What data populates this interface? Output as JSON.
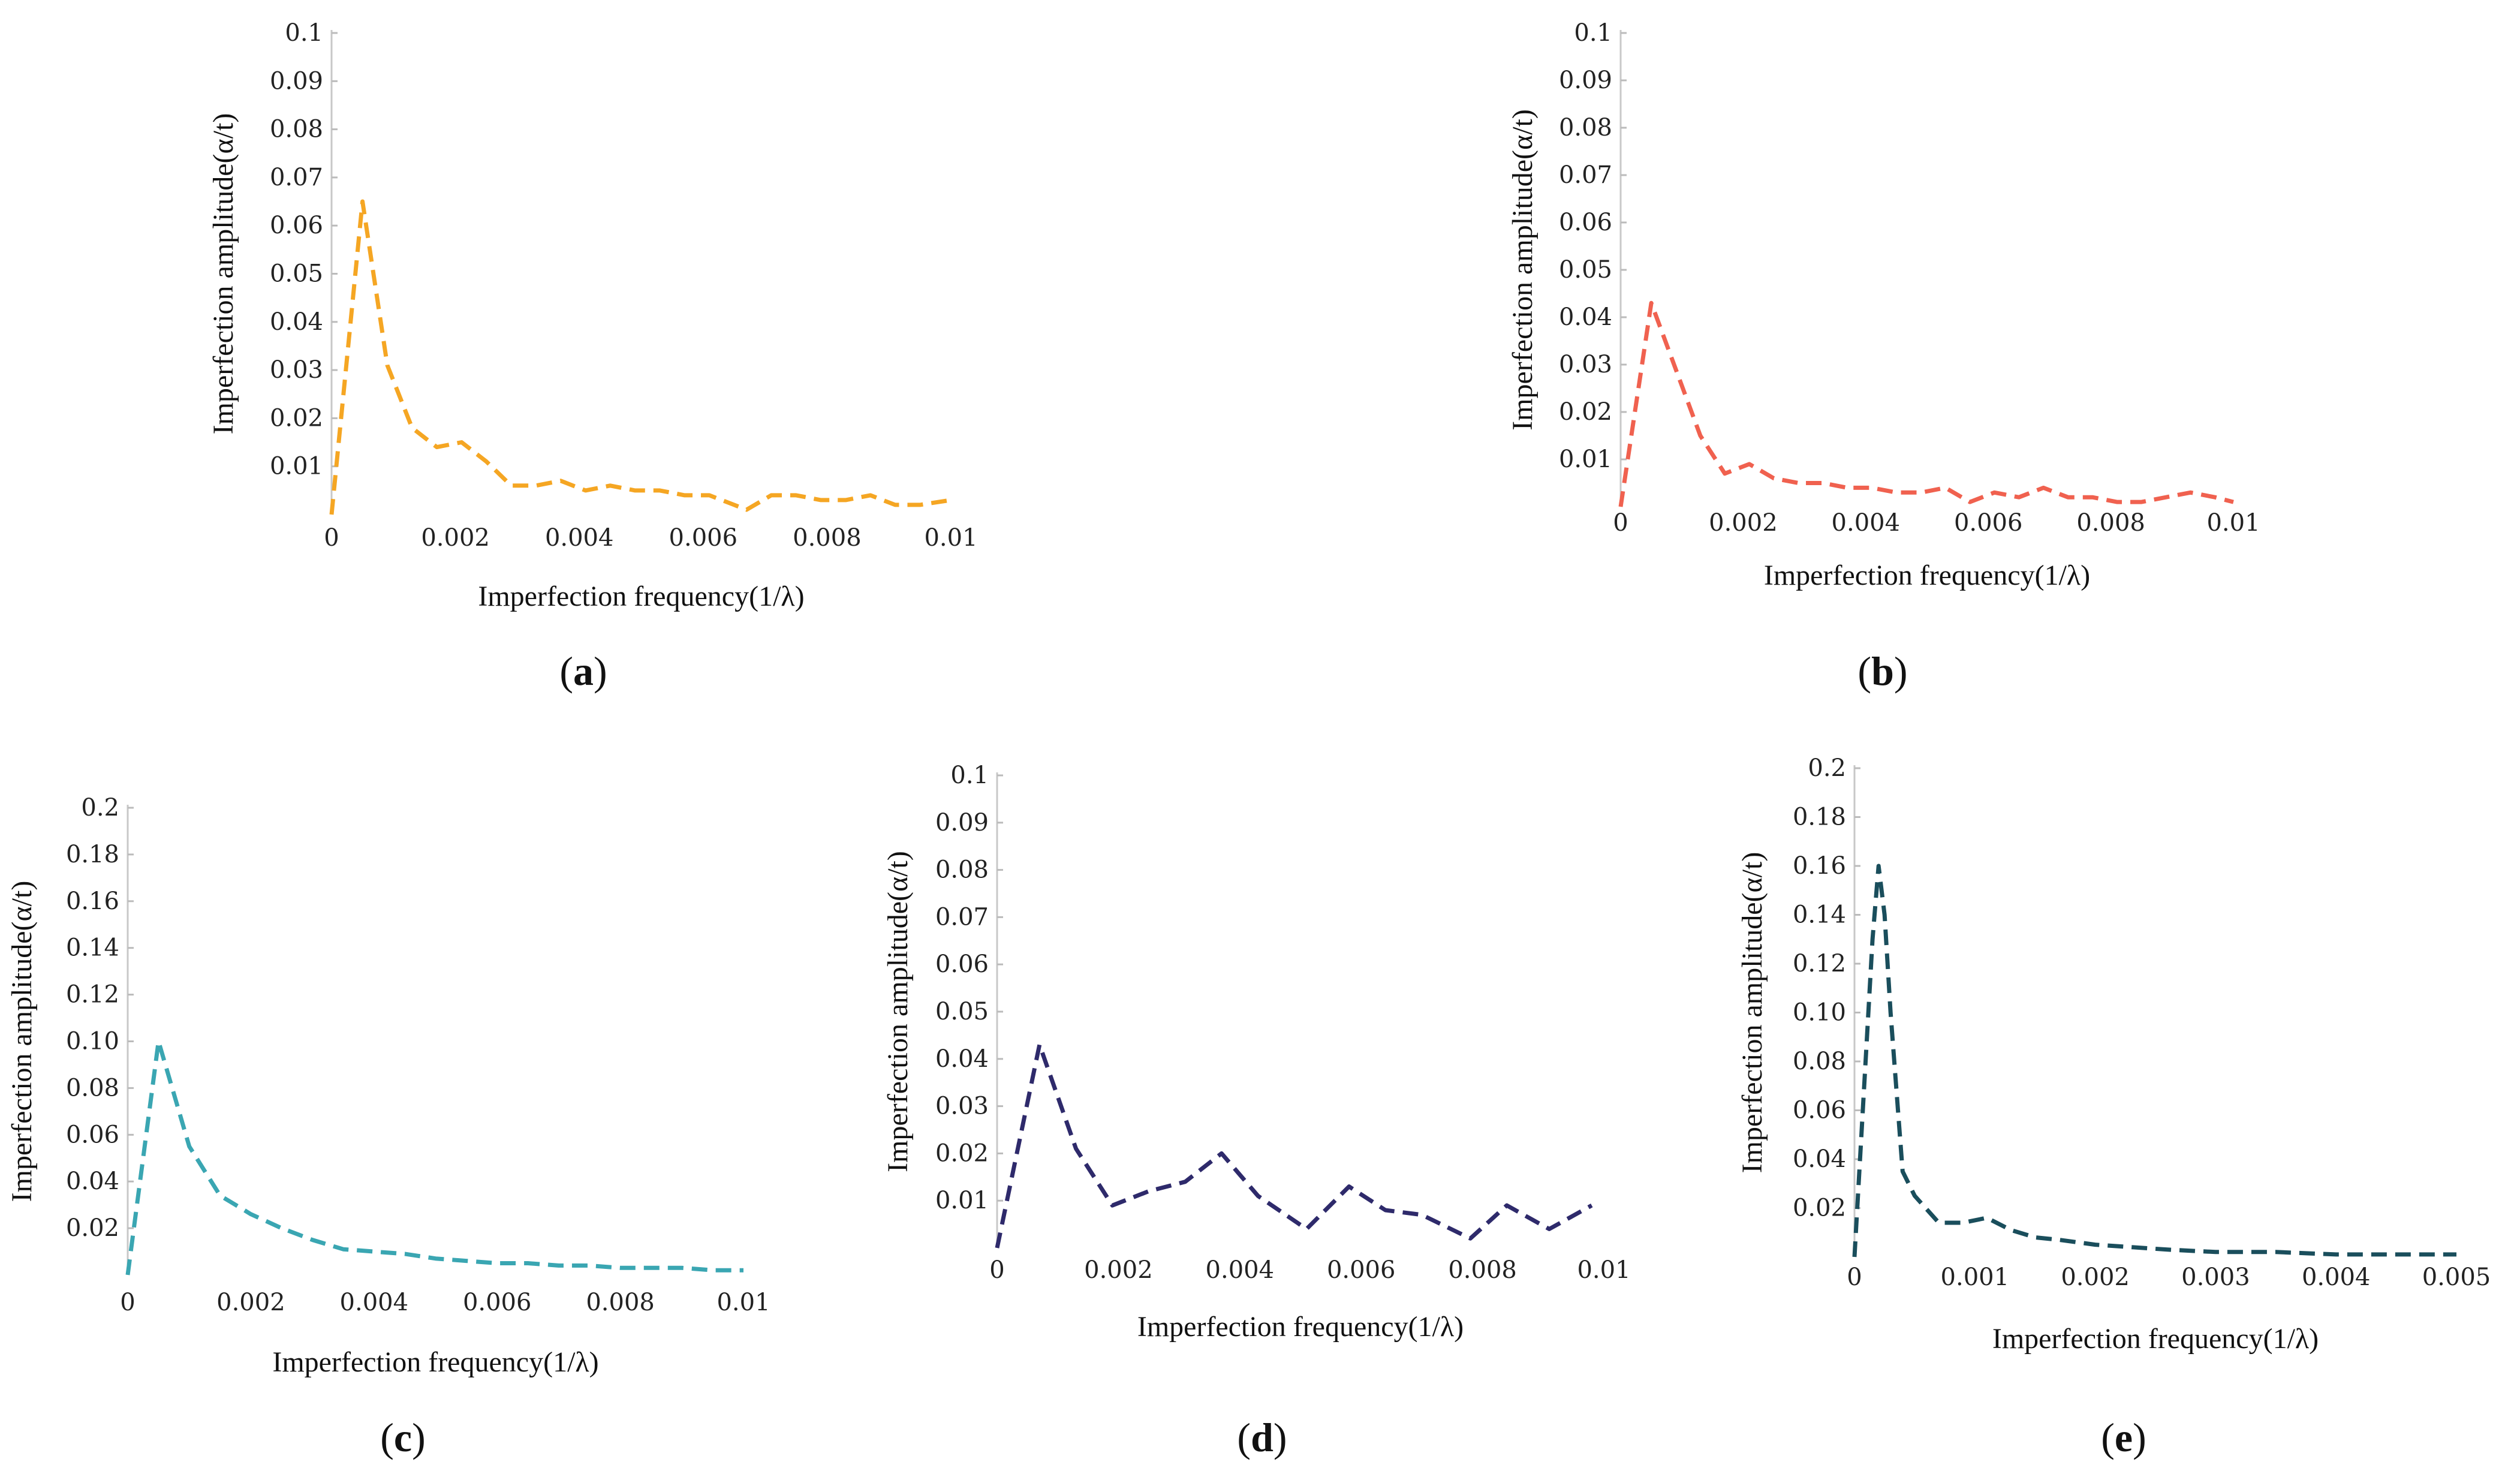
{
  "chart_data": [
    {
      "id": "a",
      "type": "line",
      "panel_label": "a",
      "xlabel": "Imperfection frequency(1/λ)",
      "ylabel": "Imperfection amplitude(α/t)",
      "xlim": [
        0,
        0.01
      ],
      "ylim": [
        0,
        0.1
      ],
      "x_ticks": [
        0,
        0.002,
        0.004,
        0.006,
        0.008,
        0.01
      ],
      "x_tick_labels": [
        "0",
        "0.002",
        "0.004",
        "0.006",
        "0.008",
        "0.01"
      ],
      "y_ticks": [
        0.01,
        0.02,
        0.03,
        0.04,
        0.05,
        0.06,
        0.07,
        0.08,
        0.09,
        0.1
      ],
      "y_tick_labels": [
        "0.01",
        "0.02",
        "0.03",
        "0.04",
        "0.05",
        "0.06",
        "0.07",
        "0.08",
        "0.09",
        "0.1"
      ],
      "color": "#f5a623",
      "series": [
        {
          "name": "a",
          "x": [
            0,
            0.0005,
            0.0009,
            0.0013,
            0.0017,
            0.0021,
            0.0025,
            0.0029,
            0.0033,
            0.0037,
            0.0041,
            0.0045,
            0.0049,
            0.0053,
            0.0057,
            0.0061,
            0.0065,
            0.0067,
            0.0071,
            0.0075,
            0.0079,
            0.0083,
            0.0087,
            0.0091,
            0.0095,
            0.01
          ],
          "y": [
            0.0,
            0.065,
            0.031,
            0.018,
            0.014,
            0.015,
            0.011,
            0.006,
            0.006,
            0.007,
            0.005,
            0.006,
            0.005,
            0.005,
            0.004,
            0.004,
            0.002,
            0.001,
            0.004,
            0.004,
            0.003,
            0.003,
            0.004,
            0.002,
            0.002,
            0.003
          ]
        }
      ]
    },
    {
      "id": "b",
      "type": "line",
      "panel_label": "b",
      "xlabel": "Imperfection frequency(1/λ)",
      "ylabel": "Imperfection amplitude(α/t)",
      "xlim": [
        0,
        0.01
      ],
      "ylim": [
        0,
        0.1
      ],
      "x_ticks": [
        0,
        0.002,
        0.004,
        0.006,
        0.008,
        0.01
      ],
      "x_tick_labels": [
        "0",
        "0.002",
        "0.004",
        "0.006",
        "0.008",
        "0.01"
      ],
      "y_ticks": [
        0.01,
        0.02,
        0.03,
        0.04,
        0.05,
        0.06,
        0.07,
        0.08,
        0.09,
        0.1
      ],
      "y_tick_labels": [
        "0.01",
        "0.02",
        "0.03",
        "0.04",
        "0.05",
        "0.06",
        "0.07",
        "0.08",
        "0.09",
        "0.1"
      ],
      "color": "#f0614f",
      "series": [
        {
          "name": "b",
          "x": [
            0,
            0.0005,
            0.0009,
            0.0013,
            0.0017,
            0.0021,
            0.0025,
            0.0029,
            0.0033,
            0.0037,
            0.0041,
            0.0045,
            0.0049,
            0.0053,
            0.0057,
            0.0061,
            0.0065,
            0.0069,
            0.0073,
            0.0077,
            0.0081,
            0.0085,
            0.0089,
            0.0093,
            0.0097,
            0.01
          ],
          "y": [
            0.0,
            0.043,
            0.029,
            0.015,
            0.007,
            0.009,
            0.006,
            0.005,
            0.005,
            0.004,
            0.004,
            0.003,
            0.003,
            0.004,
            0.001,
            0.003,
            0.002,
            0.004,
            0.002,
            0.002,
            0.001,
            0.001,
            0.002,
            0.003,
            0.002,
            0.001
          ]
        }
      ]
    },
    {
      "id": "c",
      "type": "line",
      "panel_label": "c",
      "xlabel": "Imperfection frequency(1/λ)",
      "ylabel": "Imperfection amplitude(α/t)",
      "xlim": [
        0,
        0.01
      ],
      "ylim": [
        0,
        0.2
      ],
      "x_ticks": [
        0,
        0.002,
        0.004,
        0.006,
        0.008,
        0.01
      ],
      "x_tick_labels": [
        "0",
        "0.002",
        "0.004",
        "0.006",
        "0.008",
        "0.01"
      ],
      "y_ticks": [
        0.02,
        0.04,
        0.06,
        0.08,
        0.1,
        0.12,
        0.14,
        0.16,
        0.18,
        0.2
      ],
      "y_tick_labels": [
        "0.02",
        "0.04",
        "0.06",
        "0.08",
        "0.10",
        "0.12",
        "0.14",
        "0.16",
        "0.18",
        "0.2"
      ],
      "color": "#3aa6b2",
      "series": [
        {
          "name": "c",
          "x": [
            0,
            0.0005,
            0.001,
            0.0015,
            0.002,
            0.0025,
            0.003,
            0.0035,
            0.004,
            0.0045,
            0.005,
            0.0055,
            0.006,
            0.0065,
            0.007,
            0.0075,
            0.008,
            0.0085,
            0.009,
            0.0095,
            0.01
          ],
          "y": [
            0.0,
            0.1,
            0.055,
            0.034,
            0.026,
            0.02,
            0.015,
            0.011,
            0.01,
            0.009,
            0.007,
            0.006,
            0.005,
            0.005,
            0.004,
            0.004,
            0.003,
            0.003,
            0.003,
            0.002,
            0.002
          ]
        }
      ]
    },
    {
      "id": "d",
      "type": "line",
      "panel_label": "d",
      "xlabel": "Imperfection frequency(1/λ)",
      "ylabel": "Imperfection amplitude(α/t)",
      "xlim": [
        0,
        0.01
      ],
      "ylim": [
        0,
        0.1
      ],
      "x_ticks": [
        0,
        0.002,
        0.004,
        0.006,
        0.008,
        0.01
      ],
      "x_tick_labels": [
        "0",
        "0.002",
        "0.004",
        "0.006",
        "0.008",
        "0.01"
      ],
      "y_ticks": [
        0.01,
        0.02,
        0.03,
        0.04,
        0.05,
        0.06,
        0.07,
        0.08,
        0.09,
        0.1
      ],
      "y_tick_labels": [
        "0.01",
        "0.02",
        "0.03",
        "0.04",
        "0.05",
        "0.06",
        "0.07",
        "0.08",
        "0.09",
        "0.1"
      ],
      "color": "#2e2a6b",
      "series": [
        {
          "name": "d",
          "x": [
            0,
            0.0007,
            0.0013,
            0.0019,
            0.0025,
            0.0031,
            0.0037,
            0.0043,
            0.0051,
            0.0058,
            0.0064,
            0.007,
            0.0078,
            0.0084,
            0.0091,
            0.0098
          ],
          "y": [
            0.0,
            0.043,
            0.021,
            0.009,
            0.012,
            0.014,
            0.02,
            0.011,
            0.004,
            0.013,
            0.008,
            0.007,
            0.002,
            0.009,
            0.004,
            0.009
          ]
        }
      ]
    },
    {
      "id": "e",
      "type": "line",
      "panel_label": "e",
      "xlabel": "Imperfection frequency(1/λ)",
      "ylabel": "Imperfection amplitude(α/t)",
      "xlim": [
        0,
        0.005
      ],
      "ylim": [
        0,
        0.2
      ],
      "x_ticks": [
        0,
        0.001,
        0.002,
        0.003,
        0.004,
        0.005
      ],
      "x_tick_labels": [
        "0",
        "0.001",
        "0.002",
        "0.003",
        "0.004",
        "0.005"
      ],
      "y_ticks": [
        0.02,
        0.04,
        0.06,
        0.08,
        0.1,
        0.12,
        0.14,
        0.16,
        0.18,
        0.2
      ],
      "y_tick_labels": [
        "0.02",
        "0.04",
        "0.06",
        "0.08",
        "0.10",
        "0.12",
        "0.14",
        "0.16",
        "0.18",
        "0.2"
      ],
      "color": "#1a4e5c",
      "series": [
        {
          "name": "e",
          "x": [
            0,
            0.00015,
            0.0002,
            0.00025,
            0.0003,
            0.0004,
            0.0005,
            0.0007,
            0.0009,
            0.0011,
            0.0013,
            0.0015,
            0.0017,
            0.002,
            0.0023,
            0.0026,
            0.003,
            0.0035,
            0.004,
            0.0045,
            0.005
          ],
          "y": [
            0.0,
            0.13,
            0.16,
            0.14,
            0.1,
            0.035,
            0.025,
            0.014,
            0.014,
            0.016,
            0.011,
            0.008,
            0.007,
            0.005,
            0.004,
            0.003,
            0.002,
            0.002,
            0.001,
            0.001,
            0.001
          ]
        }
      ]
    }
  ]
}
